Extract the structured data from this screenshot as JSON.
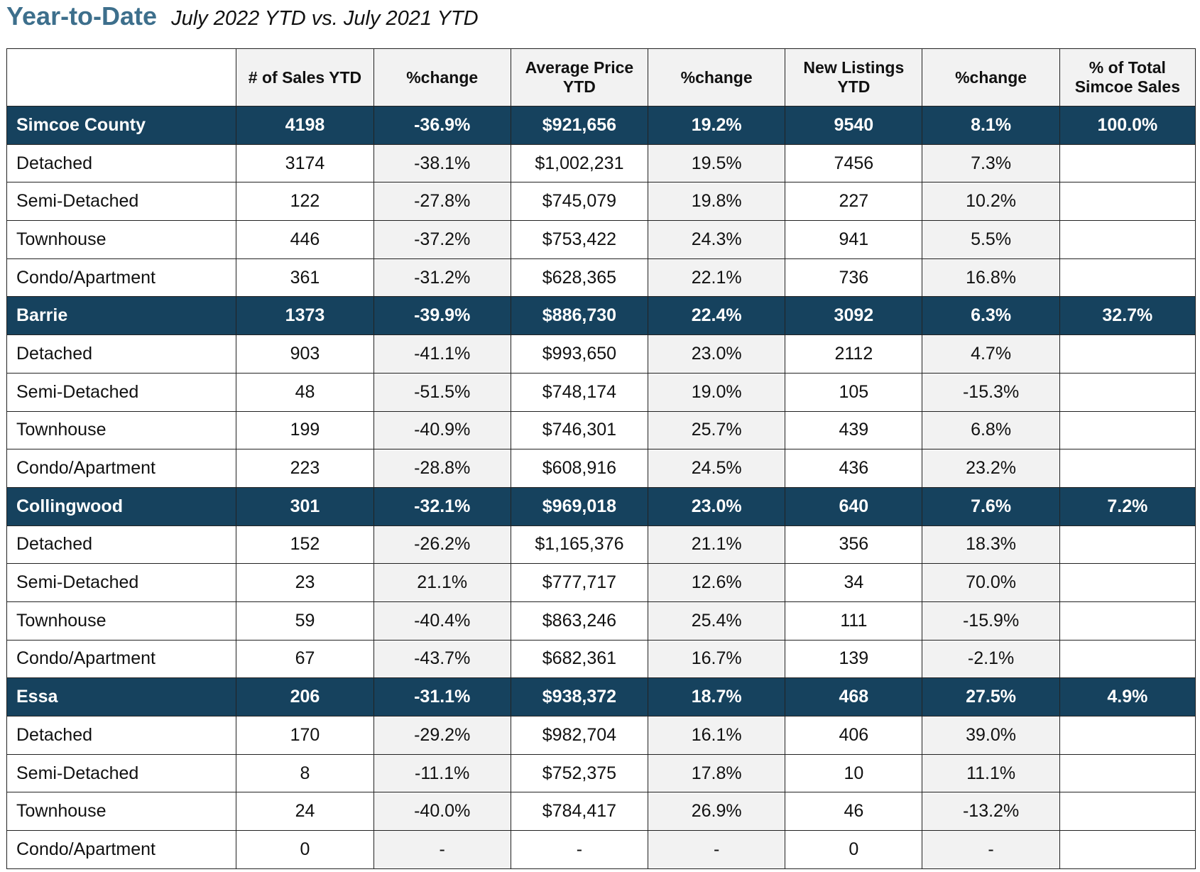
{
  "header": {
    "title": "Year-to-Date",
    "subtitle": "July 2022 YTD vs. July 2021 YTD"
  },
  "colors": {
    "title": "#3d6f8c",
    "region_row_bg": "#16425e",
    "region_row_text": "#ffffff",
    "shaded_column_bg": "#f2f2f2"
  },
  "table": {
    "columns": [
      "",
      "# of Sales YTD",
      "%change",
      "Average Price YTD",
      "%change",
      "New Listings YTD",
      "%change",
      "% of Total Simcoe Sales"
    ],
    "rows": [
      {
        "type": "region",
        "cells": [
          "Simcoe County",
          "4198",
          "-36.9%",
          "$921,656",
          "19.2%",
          "9540",
          "8.1%",
          "100.0%"
        ]
      },
      {
        "type": "detail",
        "cells": [
          "Detached",
          "3174",
          "-38.1%",
          "$1,002,231",
          "19.5%",
          "7456",
          "7.3%",
          ""
        ]
      },
      {
        "type": "detail",
        "cells": [
          "Semi-Detached",
          "122",
          "-27.8%",
          "$745,079",
          "19.8%",
          "227",
          "10.2%",
          ""
        ]
      },
      {
        "type": "detail",
        "cells": [
          "Townhouse",
          "446",
          "-37.2%",
          "$753,422",
          "24.3%",
          "941",
          "5.5%",
          ""
        ]
      },
      {
        "type": "detail",
        "cells": [
          "Condo/Apartment",
          "361",
          "-31.2%",
          "$628,365",
          "22.1%",
          "736",
          "16.8%",
          ""
        ]
      },
      {
        "type": "region",
        "cells": [
          "Barrie",
          "1373",
          "-39.9%",
          "$886,730",
          "22.4%",
          "3092",
          "6.3%",
          "32.7%"
        ]
      },
      {
        "type": "detail",
        "cells": [
          "Detached",
          "903",
          "-41.1%",
          "$993,650",
          "23.0%",
          "2112",
          "4.7%",
          ""
        ]
      },
      {
        "type": "detail",
        "cells": [
          "Semi-Detached",
          "48",
          "-51.5%",
          "$748,174",
          "19.0%",
          "105",
          "-15.3%",
          ""
        ]
      },
      {
        "type": "detail",
        "cells": [
          "Townhouse",
          "199",
          "-40.9%",
          "$746,301",
          "25.7%",
          "439",
          "6.8%",
          ""
        ]
      },
      {
        "type": "detail",
        "cells": [
          "Condo/Apartment",
          "223",
          "-28.8%",
          "$608,916",
          "24.5%",
          "436",
          "23.2%",
          ""
        ]
      },
      {
        "type": "region",
        "cells": [
          "Collingwood",
          "301",
          "-32.1%",
          "$969,018",
          "23.0%",
          "640",
          "7.6%",
          "7.2%"
        ]
      },
      {
        "type": "detail",
        "cells": [
          "Detached",
          "152",
          "-26.2%",
          "$1,165,376",
          "21.1%",
          "356",
          "18.3%",
          ""
        ]
      },
      {
        "type": "detail",
        "cells": [
          "Semi-Detached",
          "23",
          "21.1%",
          "$777,717",
          "12.6%",
          "34",
          "70.0%",
          ""
        ]
      },
      {
        "type": "detail",
        "cells": [
          "Townhouse",
          "59",
          "-40.4%",
          "$863,246",
          "25.4%",
          "111",
          "-15.9%",
          ""
        ]
      },
      {
        "type": "detail",
        "cells": [
          "Condo/Apartment",
          "67",
          "-43.7%",
          "$682,361",
          "16.7%",
          "139",
          "-2.1%",
          ""
        ]
      },
      {
        "type": "region",
        "cells": [
          "Essa",
          "206",
          "-31.1%",
          "$938,372",
          "18.7%",
          "468",
          "27.5%",
          "4.9%"
        ]
      },
      {
        "type": "detail",
        "cells": [
          "Detached",
          "170",
          "-29.2%",
          "$982,704",
          "16.1%",
          "406",
          "39.0%",
          ""
        ]
      },
      {
        "type": "detail",
        "cells": [
          "Semi-Detached",
          "8",
          "-11.1%",
          "$752,375",
          "17.8%",
          "10",
          "11.1%",
          ""
        ]
      },
      {
        "type": "detail",
        "cells": [
          "Townhouse",
          "24",
          "-40.0%",
          "$784,417",
          "26.9%",
          "46",
          "-13.2%",
          ""
        ]
      },
      {
        "type": "detail",
        "cells": [
          "Condo/Apartment",
          "0",
          "-",
          "-",
          "-",
          "0",
          "-",
          ""
        ]
      }
    ]
  }
}
